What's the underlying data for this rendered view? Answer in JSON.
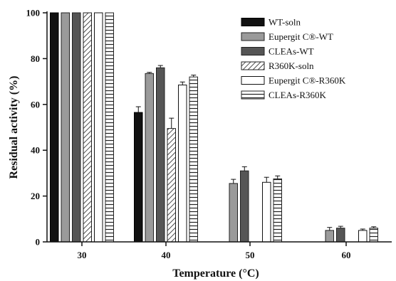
{
  "chart_data": {
    "type": "bar",
    "xlabel": "Temperature (°C)",
    "ylabel": "Residual activity (%)",
    "ylim": [
      0,
      100
    ],
    "yticks": [
      0,
      20,
      40,
      60,
      80,
      100
    ],
    "categories": [
      "30",
      "40",
      "50",
      "60"
    ],
    "grid": false,
    "legend_position": "top-right",
    "series": [
      {
        "name": "WT-soln",
        "pattern": "solid-black",
        "color": "#111111",
        "values": [
          100,
          56.5,
          null,
          null
        ],
        "errors": [
          0,
          2.5,
          null,
          null
        ]
      },
      {
        "name": "Eupergit C®-WT",
        "pattern": "solid-gray",
        "color": "#9a9a9a",
        "values": [
          100,
          73.5,
          25.5,
          5
        ],
        "errors": [
          0,
          0.5,
          1.8,
          1.3
        ]
      },
      {
        "name": "CLEAs-WT",
        "pattern": "solid-darkgray",
        "color": "#555555",
        "values": [
          100,
          76,
          31,
          6
        ],
        "errors": [
          0,
          1,
          1.8,
          0.8
        ]
      },
      {
        "name": "R360K-soln",
        "pattern": "diagonal-hatch",
        "color": "#333333",
        "values": [
          100,
          49.5,
          null,
          null
        ],
        "errors": [
          0,
          4.5,
          null,
          null
        ]
      },
      {
        "name": "Eupergit C®-R360K",
        "pattern": "open",
        "color": "#111111",
        "values": [
          100,
          68.5,
          26,
          5
        ],
        "errors": [
          0,
          1.3,
          2.2,
          0.6
        ]
      },
      {
        "name": "CLEAs-R360K",
        "pattern": "horizontal-hatch",
        "color": "#333333",
        "values": [
          100,
          72,
          27.5,
          6
        ],
        "errors": [
          0,
          0.8,
          1.3,
          0.6
        ]
      }
    ]
  }
}
